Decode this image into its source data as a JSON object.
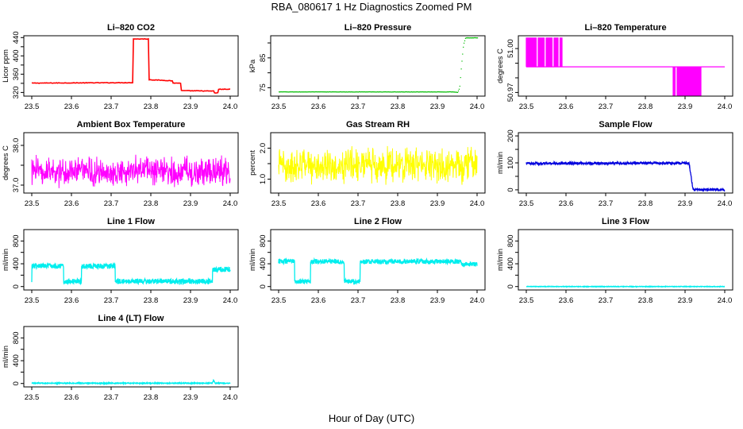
{
  "figure": {
    "title": "RBA_080617  1 Hz Diagnostics Zoomed PM",
    "xlabel": "Hour of Day (UTC)"
  },
  "chart_data": [
    {
      "type": "line",
      "title": "Li–820 CO2",
      "xlabel": "",
      "ylabel": "Licor ppm",
      "xlim": [
        23.48,
        24.02
      ],
      "ylim": [
        312,
        444
      ],
      "xticks": [
        23.5,
        23.6,
        23.7,
        23.8,
        23.9,
        24.0
      ],
      "xtick_labels": [
        "23.5",
        "23.6",
        "23.7",
        "23.8",
        "23.9",
        "24.0"
      ],
      "yticks": [
        320,
        340,
        360,
        380,
        400,
        420,
        440
      ],
      "ytick_labels": [
        "320",
        "",
        "360",
        "",
        "400",
        "",
        "440"
      ],
      "color": "#ff0000",
      "style": "step",
      "noise": 0.6,
      "series": [
        {
          "name": "CO2",
          "x": [
            23.5,
            23.755,
            23.755,
            23.795,
            23.795,
            23.855,
            23.855,
            23.875,
            23.875,
            23.96,
            23.96,
            23.97,
            23.97,
            24.0
          ],
          "y": [
            340.5,
            341.5,
            437,
            437,
            348,
            345.5,
            340.5,
            340.5,
            324,
            323,
            319,
            319,
            327,
            327
          ]
        }
      ]
    },
    {
      "type": "line",
      "title": "Li–820 Pressure",
      "xlabel": "",
      "ylabel": "kPa",
      "xlim": [
        23.48,
        24.02
      ],
      "ylim": [
        72.2,
        92.4
      ],
      "xticks": [
        23.5,
        23.6,
        23.7,
        23.8,
        23.9,
        24.0
      ],
      "xtick_labels": [
        "23.5",
        "23.6",
        "23.7",
        "23.8",
        "23.9",
        "24.0"
      ],
      "yticks": [
        75,
        80,
        85,
        90
      ],
      "ytick_labels": [
        "75",
        "",
        "85",
        ""
      ],
      "color": "#00bb00",
      "style": "dots",
      "noise": 0.05,
      "series": [
        {
          "name": "Pressure",
          "x": [
            23.5,
            23.94,
            23.95,
            23.955,
            23.96,
            23.965,
            23.97,
            24.0
          ],
          "y": [
            73.6,
            73.6,
            73.4,
            75,
            83,
            89.5,
            91.7,
            91.7
          ]
        }
      ]
    },
    {
      "type": "line",
      "title": "Li–820 Temperature",
      "xlabel": "",
      "ylabel": "degrees C",
      "xlim": [
        23.48,
        24.02
      ],
      "ylim": [
        50.9675,
        51.00875
      ],
      "xticks": [
        23.5,
        23.6,
        23.7,
        23.8,
        23.9,
        24.0
      ],
      "xtick_labels": [
        "23.5",
        "23.6",
        "23.7",
        "23.8",
        "23.9",
        "24.0"
      ],
      "yticks": [
        50.97,
        50.98,
        50.99,
        51.0
      ],
      "ytick_labels": [
        "50.97",
        "",
        "",
        "51.00"
      ],
      "color": "#ff00ff",
      "style": "quant",
      "series": [
        {
          "name": "Temperature",
          "x": [
            23.5,
            24.0
          ],
          "y": [
            50.9875,
            50.9875
          ]
        }
      ],
      "quant": {
        "base": 50.9875,
        "high": 51.0075,
        "low": 50.9675,
        "high_ranges": [
          [
            23.5,
            23.525
          ],
          [
            23.53,
            23.545
          ],
          [
            23.55,
            23.565
          ],
          [
            23.57,
            23.58
          ],
          [
            23.585,
            23.59
          ]
        ],
        "low_ranges": [
          [
            23.87,
            23.875
          ],
          [
            23.88,
            23.884
          ],
          [
            23.885,
            23.94
          ]
        ]
      }
    },
    {
      "type": "line",
      "title": "Ambient Box Temperature",
      "xlabel": "",
      "ylabel": "degrees C",
      "xlim": [
        23.48,
        24.02
      ],
      "ylim": [
        36.8,
        38.32
      ],
      "xticks": [
        23.5,
        23.6,
        23.7,
        23.8,
        23.9,
        24.0
      ],
      "xtick_labels": [
        "23.5",
        "23.6",
        "23.7",
        "23.8",
        "23.9",
        "24.0"
      ],
      "yticks": [
        37.0,
        37.5,
        38.0
      ],
      "ytick_labels": [
        "37.0",
        "",
        "38.0"
      ],
      "color": "#ff00ff",
      "style": "noise",
      "noise": 0.28,
      "clip": [
        36.9,
        38.3
      ],
      "series": [
        {
          "name": "Box temperature",
          "x": [
            23.5,
            24.0
          ],
          "y": [
            37.35,
            37.35
          ]
        }
      ]
    },
    {
      "type": "line",
      "title": "Gas Stream RH",
      "xlabel": "",
      "ylabel": "percent",
      "xlim": [
        23.48,
        24.02
      ],
      "ylim": [
        0.55,
        2.5
      ],
      "xticks": [
        23.5,
        23.6,
        23.7,
        23.8,
        23.9,
        24.0
      ],
      "xtick_labels": [
        "23.5",
        "23.6",
        "23.7",
        "23.8",
        "23.9",
        "24.0"
      ],
      "yticks": [
        1.0,
        1.5,
        2.0
      ],
      "ytick_labels": [
        "1.0",
        "",
        "2.0"
      ],
      "color": "#ffff00",
      "style": "noise",
      "noise": 0.42,
      "clip": [
        0.6,
        2.35
      ],
      "series": [
        {
          "name": "RH",
          "x": [
            23.5,
            24.0
          ],
          "y": [
            1.45,
            1.45
          ]
        }
      ]
    },
    {
      "type": "line",
      "title": "Sample Flow",
      "xlabel": "",
      "ylabel": "ml/min",
      "xlim": [
        23.48,
        24.02
      ],
      "ylim": [
        -12,
        212
      ],
      "xticks": [
        23.5,
        23.6,
        23.7,
        23.8,
        23.9,
        24.0
      ],
      "xtick_labels": [
        "23.5",
        "23.6",
        "23.7",
        "23.8",
        "23.9",
        "24.0"
      ],
      "yticks": [
        0,
        50,
        100,
        150,
        200
      ],
      "ytick_labels": [
        "0",
        "",
        "100",
        "",
        "200"
      ],
      "color": "#0000dd",
      "style": "band",
      "noise": 4,
      "series": [
        {
          "name": "Sample flow",
          "x": [
            23.5,
            23.91,
            23.91,
            23.92,
            24.0
          ],
          "y": [
            98,
            99,
            100,
            2,
            0
          ]
        }
      ]
    },
    {
      "type": "line",
      "title": "Line 1 Flow",
      "xlabel": "",
      "ylabel": "ml/min",
      "xlim": [
        23.48,
        24.02
      ],
      "ylim": [
        -60,
        1000
      ],
      "xticks": [
        23.5,
        23.6,
        23.7,
        23.8,
        23.9,
        24.0
      ],
      "xtick_labels": [
        "23.5",
        "23.6",
        "23.7",
        "23.8",
        "23.9",
        "24.0"
      ],
      "yticks": [
        0,
        200,
        400,
        600,
        800
      ],
      "ytick_labels": [
        "0",
        "",
        "400",
        "",
        "800"
      ],
      "color": "#00eeee",
      "style": "band",
      "noise": 45,
      "series": [
        {
          "name": "Line 1",
          "x": [
            23.5,
            23.5,
            23.58,
            23.58,
            23.625,
            23.625,
            23.71,
            23.71,
            23.955,
            23.955,
            24.0
          ],
          "y": [
            120,
            360,
            360,
            90,
            90,
            360,
            360,
            90,
            90,
            300,
            300
          ]
        }
      ]
    },
    {
      "type": "line",
      "title": "Line 2 Flow",
      "xlabel": "",
      "ylabel": "ml/min",
      "xlim": [
        23.48,
        24.02
      ],
      "ylim": [
        -60,
        1000
      ],
      "xticks": [
        23.5,
        23.6,
        23.7,
        23.8,
        23.9,
        24.0
      ],
      "xtick_labels": [
        "23.5",
        "23.6",
        "23.7",
        "23.8",
        "23.9",
        "24.0"
      ],
      "yticks": [
        0,
        200,
        400,
        600,
        800
      ],
      "ytick_labels": [
        "0",
        "",
        "400",
        "",
        "800"
      ],
      "color": "#00eeee",
      "style": "band",
      "noise": 40,
      "series": [
        {
          "name": "Line 2",
          "x": [
            23.5,
            23.54,
            23.54,
            23.58,
            23.58,
            23.665,
            23.665,
            23.705,
            23.705,
            23.96,
            23.96,
            24.0
          ],
          "y": [
            440,
            440,
            90,
            90,
            440,
            440,
            90,
            90,
            440,
            440,
            390,
            390
          ]
        }
      ]
    },
    {
      "type": "line",
      "title": "Line 3 Flow",
      "xlabel": "",
      "ylabel": "ml/min",
      "xlim": [
        23.48,
        24.02
      ],
      "ylim": [
        -60,
        1000
      ],
      "xticks": [
        23.5,
        23.6,
        23.7,
        23.8,
        23.9,
        24.0
      ],
      "xtick_labels": [
        "23.5",
        "23.6",
        "23.7",
        "23.8",
        "23.9",
        "24.0"
      ],
      "yticks": [
        0,
        200,
        400,
        600,
        800
      ],
      "ytick_labels": [
        "0",
        "",
        "400",
        "",
        "800"
      ],
      "color": "#00eeee",
      "style": "band",
      "noise": 5,
      "series": [
        {
          "name": "Line 3",
          "x": [
            23.5,
            24.0
          ],
          "y": [
            0,
            0
          ]
        }
      ]
    },
    {
      "type": "line",
      "title": "Line 4 (LT) Flow",
      "xlabel": "",
      "ylabel": "ml/min",
      "xlim": [
        23.48,
        24.02
      ],
      "ylim": [
        -60,
        1000
      ],
      "xticks": [
        23.5,
        23.6,
        23.7,
        23.8,
        23.9,
        24.0
      ],
      "xtick_labels": [
        "23.5",
        "23.6",
        "23.7",
        "23.8",
        "23.9",
        "24.0"
      ],
      "yticks": [
        0,
        200,
        400,
        600,
        800
      ],
      "ytick_labels": [
        "0",
        "",
        "400",
        "",
        "800"
      ],
      "color": "#00eeee",
      "style": "band",
      "noise": 8,
      "series": [
        {
          "name": "Line 4",
          "x": [
            23.5,
            23.955,
            23.958,
            23.962,
            24.0
          ],
          "y": [
            5,
            5,
            60,
            5,
            5
          ]
        }
      ]
    }
  ]
}
